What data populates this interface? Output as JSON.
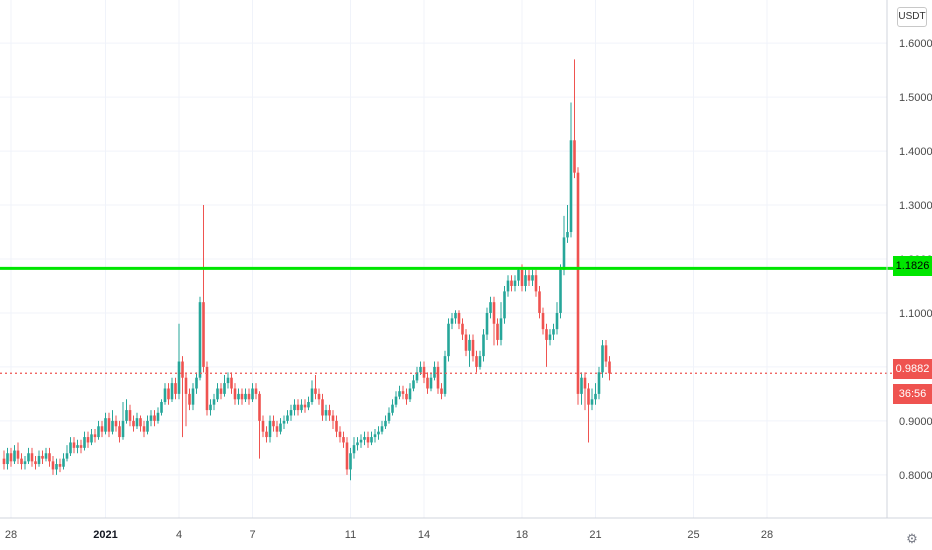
{
  "currency": "USDT",
  "colors": {
    "up": "#26a69a",
    "down": "#ef5350",
    "hline": "#00e600",
    "grid": "#f0f3fa"
  },
  "current_price_label": "0.9882",
  "countdown": "36:56",
  "hline_label": "1.1826",
  "chart_data": {
    "type": "candlestick",
    "y_range": [
      0.72,
      1.68
    ],
    "y_ticks": [
      0.8,
      0.9,
      1.0,
      1.1,
      1.2,
      1.3,
      1.4,
      1.5,
      1.6
    ],
    "y_tick_labels": [
      "0.8000",
      "0.9000",
      "1.0000",
      "1.1000",
      "1.2000",
      "1.3000",
      "1.4000",
      "1.5000",
      "1.6000"
    ],
    "x_ticks": [
      {
        "label": "28",
        "bold": false,
        "idx": 2
      },
      {
        "label": "2021",
        "bold": true,
        "idx": 29
      },
      {
        "label": "4",
        "bold": false,
        "idx": 50
      },
      {
        "label": "7",
        "bold": false,
        "idx": 71
      },
      {
        "label": "11",
        "bold": false,
        "idx": 99
      },
      {
        "label": "14",
        "bold": false,
        "idx": 120
      },
      {
        "label": "18",
        "bold": false,
        "idx": 148
      },
      {
        "label": "21",
        "bold": false,
        "idx": 169
      },
      {
        "label": "25",
        "bold": false,
        "idx": 197
      },
      {
        "label": "28",
        "bold": false,
        "idx": 218
      }
    ],
    "hline_value": 1.1826,
    "current_price": 0.9882,
    "candles": [
      [
        0.83,
        0.82,
        0.845,
        0.81
      ],
      [
        0.82,
        0.84,
        0.85,
        0.81
      ],
      [
        0.84,
        0.825,
        0.85,
        0.815
      ],
      [
        0.825,
        0.845,
        0.855,
        0.82
      ],
      [
        0.845,
        0.83,
        0.86,
        0.82
      ],
      [
        0.83,
        0.82,
        0.84,
        0.81
      ],
      [
        0.82,
        0.825,
        0.835,
        0.81
      ],
      [
        0.825,
        0.84,
        0.85,
        0.82
      ],
      [
        0.84,
        0.825,
        0.85,
        0.815
      ],
      [
        0.825,
        0.82,
        0.835,
        0.81
      ],
      [
        0.82,
        0.835,
        0.845,
        0.815
      ],
      [
        0.835,
        0.83,
        0.845,
        0.82
      ],
      [
        0.83,
        0.84,
        0.85,
        0.825
      ],
      [
        0.84,
        0.825,
        0.85,
        0.815
      ],
      [
        0.825,
        0.81,
        0.835,
        0.8
      ],
      [
        0.81,
        0.82,
        0.83,
        0.8
      ],
      [
        0.82,
        0.815,
        0.83,
        0.805
      ],
      [
        0.815,
        0.83,
        0.84,
        0.81
      ],
      [
        0.83,
        0.84,
        0.855,
        0.825
      ],
      [
        0.84,
        0.86,
        0.87,
        0.835
      ],
      [
        0.86,
        0.85,
        0.87,
        0.84
      ],
      [
        0.85,
        0.855,
        0.865,
        0.84
      ],
      [
        0.855,
        0.85,
        0.865,
        0.84
      ],
      [
        0.85,
        0.87,
        0.88,
        0.845
      ],
      [
        0.87,
        0.86,
        0.88,
        0.85
      ],
      [
        0.86,
        0.875,
        0.885,
        0.855
      ],
      [
        0.875,
        0.87,
        0.885,
        0.86
      ],
      [
        0.87,
        0.89,
        0.9,
        0.865
      ],
      [
        0.89,
        0.88,
        0.9,
        0.87
      ],
      [
        0.88,
        0.905,
        0.915,
        0.875
      ],
      [
        0.905,
        0.88,
        0.915,
        0.87
      ],
      [
        0.88,
        0.9,
        0.92,
        0.875
      ],
      [
        0.9,
        0.89,
        0.91,
        0.88
      ],
      [
        0.89,
        0.87,
        0.9,
        0.86
      ],
      [
        0.87,
        0.9,
        0.935,
        0.865
      ],
      [
        0.9,
        0.92,
        0.94,
        0.895
      ],
      [
        0.92,
        0.9,
        0.93,
        0.89
      ],
      [
        0.9,
        0.89,
        0.91,
        0.88
      ],
      [
        0.89,
        0.905,
        0.915,
        0.885
      ],
      [
        0.905,
        0.89,
        0.91,
        0.88
      ],
      [
        0.89,
        0.88,
        0.9,
        0.87
      ],
      [
        0.88,
        0.9,
        0.91,
        0.875
      ],
      [
        0.9,
        0.91,
        0.92,
        0.89
      ],
      [
        0.91,
        0.9,
        0.92,
        0.89
      ],
      [
        0.9,
        0.915,
        0.925,
        0.895
      ],
      [
        0.915,
        0.935,
        0.94,
        0.91
      ],
      [
        0.935,
        0.96,
        0.97,
        0.93
      ],
      [
        0.96,
        0.94,
        0.97,
        0.93
      ],
      [
        0.94,
        0.97,
        0.98,
        0.935
      ],
      [
        0.97,
        0.95,
        0.98,
        0.94
      ],
      [
        0.95,
        1.01,
        1.08,
        0.94
      ],
      [
        1.01,
        0.98,
        1.02,
        0.87
      ],
      [
        0.98,
        0.95,
        0.99,
        0.89
      ],
      [
        0.95,
        0.93,
        0.96,
        0.92
      ],
      [
        0.93,
        0.96,
        0.97,
        0.92
      ],
      [
        0.96,
        0.98,
        0.99,
        0.95
      ],
      [
        0.98,
        1.12,
        1.13,
        0.975
      ],
      [
        1.12,
        1.0,
        1.3,
        0.99
      ],
      [
        1.0,
        0.92,
        1.01,
        0.91
      ],
      [
        0.92,
        0.93,
        0.94,
        0.91
      ],
      [
        0.93,
        0.94,
        0.95,
        0.92
      ],
      [
        0.94,
        0.96,
        0.97,
        0.935
      ],
      [
        0.96,
        0.95,
        0.97,
        0.94
      ],
      [
        0.95,
        0.97,
        0.985,
        0.945
      ],
      [
        0.97,
        0.98,
        0.99,
        0.96
      ],
      [
        0.98,
        0.96,
        0.99,
        0.95
      ],
      [
        0.96,
        0.94,
        0.97,
        0.93
      ],
      [
        0.94,
        0.95,
        0.96,
        0.93
      ],
      [
        0.95,
        0.94,
        0.96,
        0.93
      ],
      [
        0.94,
        0.95,
        0.96,
        0.935
      ],
      [
        0.95,
        0.94,
        0.96,
        0.93
      ],
      [
        0.94,
        0.96,
        0.97,
        0.935
      ],
      [
        0.96,
        0.95,
        0.97,
        0.94
      ],
      [
        0.95,
        0.9,
        0.955,
        0.83
      ],
      [
        0.9,
        0.88,
        0.91,
        0.87
      ],
      [
        0.88,
        0.87,
        0.89,
        0.86
      ],
      [
        0.87,
        0.9,
        0.91,
        0.86
      ],
      [
        0.9,
        0.89,
        0.91,
        0.88
      ],
      [
        0.89,
        0.88,
        0.9,
        0.87
      ],
      [
        0.88,
        0.895,
        0.905,
        0.875
      ],
      [
        0.895,
        0.9,
        0.91,
        0.885
      ],
      [
        0.9,
        0.91,
        0.92,
        0.895
      ],
      [
        0.91,
        0.92,
        0.93,
        0.9
      ],
      [
        0.92,
        0.93,
        0.94,
        0.91
      ],
      [
        0.93,
        0.92,
        0.94,
        0.91
      ],
      [
        0.92,
        0.93,
        0.94,
        0.915
      ],
      [
        0.93,
        0.925,
        0.94,
        0.915
      ],
      [
        0.925,
        0.935,
        0.945,
        0.92
      ],
      [
        0.935,
        0.96,
        0.975,
        0.93
      ],
      [
        0.96,
        0.95,
        0.985,
        0.94
      ],
      [
        0.95,
        0.94,
        0.96,
        0.93
      ],
      [
        0.94,
        0.91,
        0.95,
        0.9
      ],
      [
        0.91,
        0.92,
        0.93,
        0.9
      ],
      [
        0.92,
        0.91,
        0.93,
        0.9
      ],
      [
        0.91,
        0.9,
        0.92,
        0.885
      ],
      [
        0.9,
        0.88,
        0.91,
        0.87
      ],
      [
        0.88,
        0.87,
        0.89,
        0.86
      ],
      [
        0.87,
        0.86,
        0.88,
        0.85
      ],
      [
        0.86,
        0.81,
        0.87,
        0.8
      ],
      [
        0.81,
        0.84,
        0.85,
        0.79
      ],
      [
        0.84,
        0.855,
        0.87,
        0.83
      ],
      [
        0.855,
        0.86,
        0.87,
        0.845
      ],
      [
        0.86,
        0.865,
        0.875,
        0.85
      ],
      [
        0.865,
        0.87,
        0.88,
        0.855
      ],
      [
        0.87,
        0.86,
        0.88,
        0.85
      ],
      [
        0.86,
        0.87,
        0.88,
        0.855
      ],
      [
        0.87,
        0.875,
        0.885,
        0.86
      ],
      [
        0.875,
        0.88,
        0.89,
        0.865
      ],
      [
        0.88,
        0.89,
        0.9,
        0.875
      ],
      [
        0.89,
        0.9,
        0.91,
        0.885
      ],
      [
        0.9,
        0.915,
        0.925,
        0.895
      ],
      [
        0.915,
        0.93,
        0.94,
        0.91
      ],
      [
        0.93,
        0.945,
        0.955,
        0.925
      ],
      [
        0.945,
        0.955,
        0.965,
        0.94
      ],
      [
        0.955,
        0.95,
        0.965,
        0.94
      ],
      [
        0.95,
        0.94,
        0.96,
        0.93
      ],
      [
        0.94,
        0.96,
        0.97,
        0.935
      ],
      [
        0.96,
        0.975,
        0.985,
        0.955
      ],
      [
        0.975,
        0.99,
        1.0,
        0.97
      ],
      [
        0.99,
        1.0,
        1.01,
        0.985
      ],
      [
        1.0,
        0.98,
        1.01,
        0.97
      ],
      [
        0.98,
        0.96,
        0.99,
        0.95
      ],
      [
        0.96,
        0.98,
        0.99,
        0.955
      ],
      [
        0.98,
        1.0,
        1.01,
        0.975
      ],
      [
        1.0,
        0.96,
        1.01,
        0.95
      ],
      [
        0.96,
        0.95,
        0.97,
        0.94
      ],
      [
        0.95,
        1.02,
        1.03,
        0.945
      ],
      [
        1.02,
        1.08,
        1.09,
        1.01
      ],
      [
        1.08,
        1.09,
        1.1,
        1.07
      ],
      [
        1.09,
        1.1,
        1.105,
        1.08
      ],
      [
        1.1,
        1.08,
        1.105,
        1.07
      ],
      [
        1.08,
        1.06,
        1.09,
        1.05
      ],
      [
        1.06,
        1.03,
        1.07,
        1.02
      ],
      [
        1.03,
        1.05,
        1.06,
        1.0
      ],
      [
        1.05,
        1.02,
        1.06,
        1.01
      ],
      [
        1.02,
        1.0,
        1.03,
        0.99
      ],
      [
        1.0,
        1.02,
        1.03,
        0.995
      ],
      [
        1.02,
        1.06,
        1.07,
        1.01
      ],
      [
        1.06,
        1.1,
        1.11,
        1.05
      ],
      [
        1.1,
        1.12,
        1.13,
        1.09
      ],
      [
        1.12,
        1.08,
        1.13,
        1.04
      ],
      [
        1.08,
        1.05,
        1.09,
        1.04
      ],
      [
        1.05,
        1.09,
        1.12,
        1.04
      ],
      [
        1.09,
        1.14,
        1.15,
        1.08
      ],
      [
        1.14,
        1.16,
        1.17,
        1.13
      ],
      [
        1.16,
        1.15,
        1.17,
        1.14
      ],
      [
        1.15,
        1.16,
        1.17,
        1.14
      ],
      [
        1.16,
        1.18,
        1.185,
        1.15
      ],
      [
        1.18,
        1.15,
        1.19,
        1.14
      ],
      [
        1.15,
        1.17,
        1.18,
        1.14
      ],
      [
        1.17,
        1.16,
        1.18,
        1.15
      ],
      [
        1.16,
        1.17,
        1.18,
        1.15
      ],
      [
        1.17,
        1.14,
        1.18,
        1.13
      ],
      [
        1.14,
        1.1,
        1.15,
        1.09
      ],
      [
        1.1,
        1.07,
        1.11,
        1.06
      ],
      [
        1.07,
        1.05,
        1.08,
        1.0
      ],
      [
        1.05,
        1.06,
        1.07,
        1.04
      ],
      [
        1.06,
        1.07,
        1.08,
        1.05
      ],
      [
        1.07,
        1.1,
        1.12,
        1.06
      ],
      [
        1.1,
        1.18,
        1.19,
        1.09
      ],
      [
        1.18,
        1.24,
        1.28,
        1.17
      ],
      [
        1.24,
        1.25,
        1.3,
        1.23
      ],
      [
        1.25,
        1.42,
        1.49,
        1.24
      ],
      [
        1.42,
        1.36,
        1.57,
        1.35
      ],
      [
        1.36,
        0.95,
        1.37,
        0.93
      ],
      [
        0.95,
        0.98,
        0.99,
        0.93
      ],
      [
        0.98,
        0.96,
        0.99,
        0.92
      ],
      [
        0.96,
        0.93,
        0.97,
        0.86
      ],
      [
        0.93,
        0.94,
        0.96,
        0.92
      ],
      [
        0.94,
        0.95,
        0.97,
        0.93
      ],
      [
        0.95,
        0.99,
        1.0,
        0.94
      ],
      [
        0.99,
        1.04,
        1.05,
        0.98
      ],
      [
        1.04,
        1.01,
        1.05,
        1.0
      ],
      [
        1.01,
        0.9882,
        1.02,
        0.975
      ]
    ]
  }
}
